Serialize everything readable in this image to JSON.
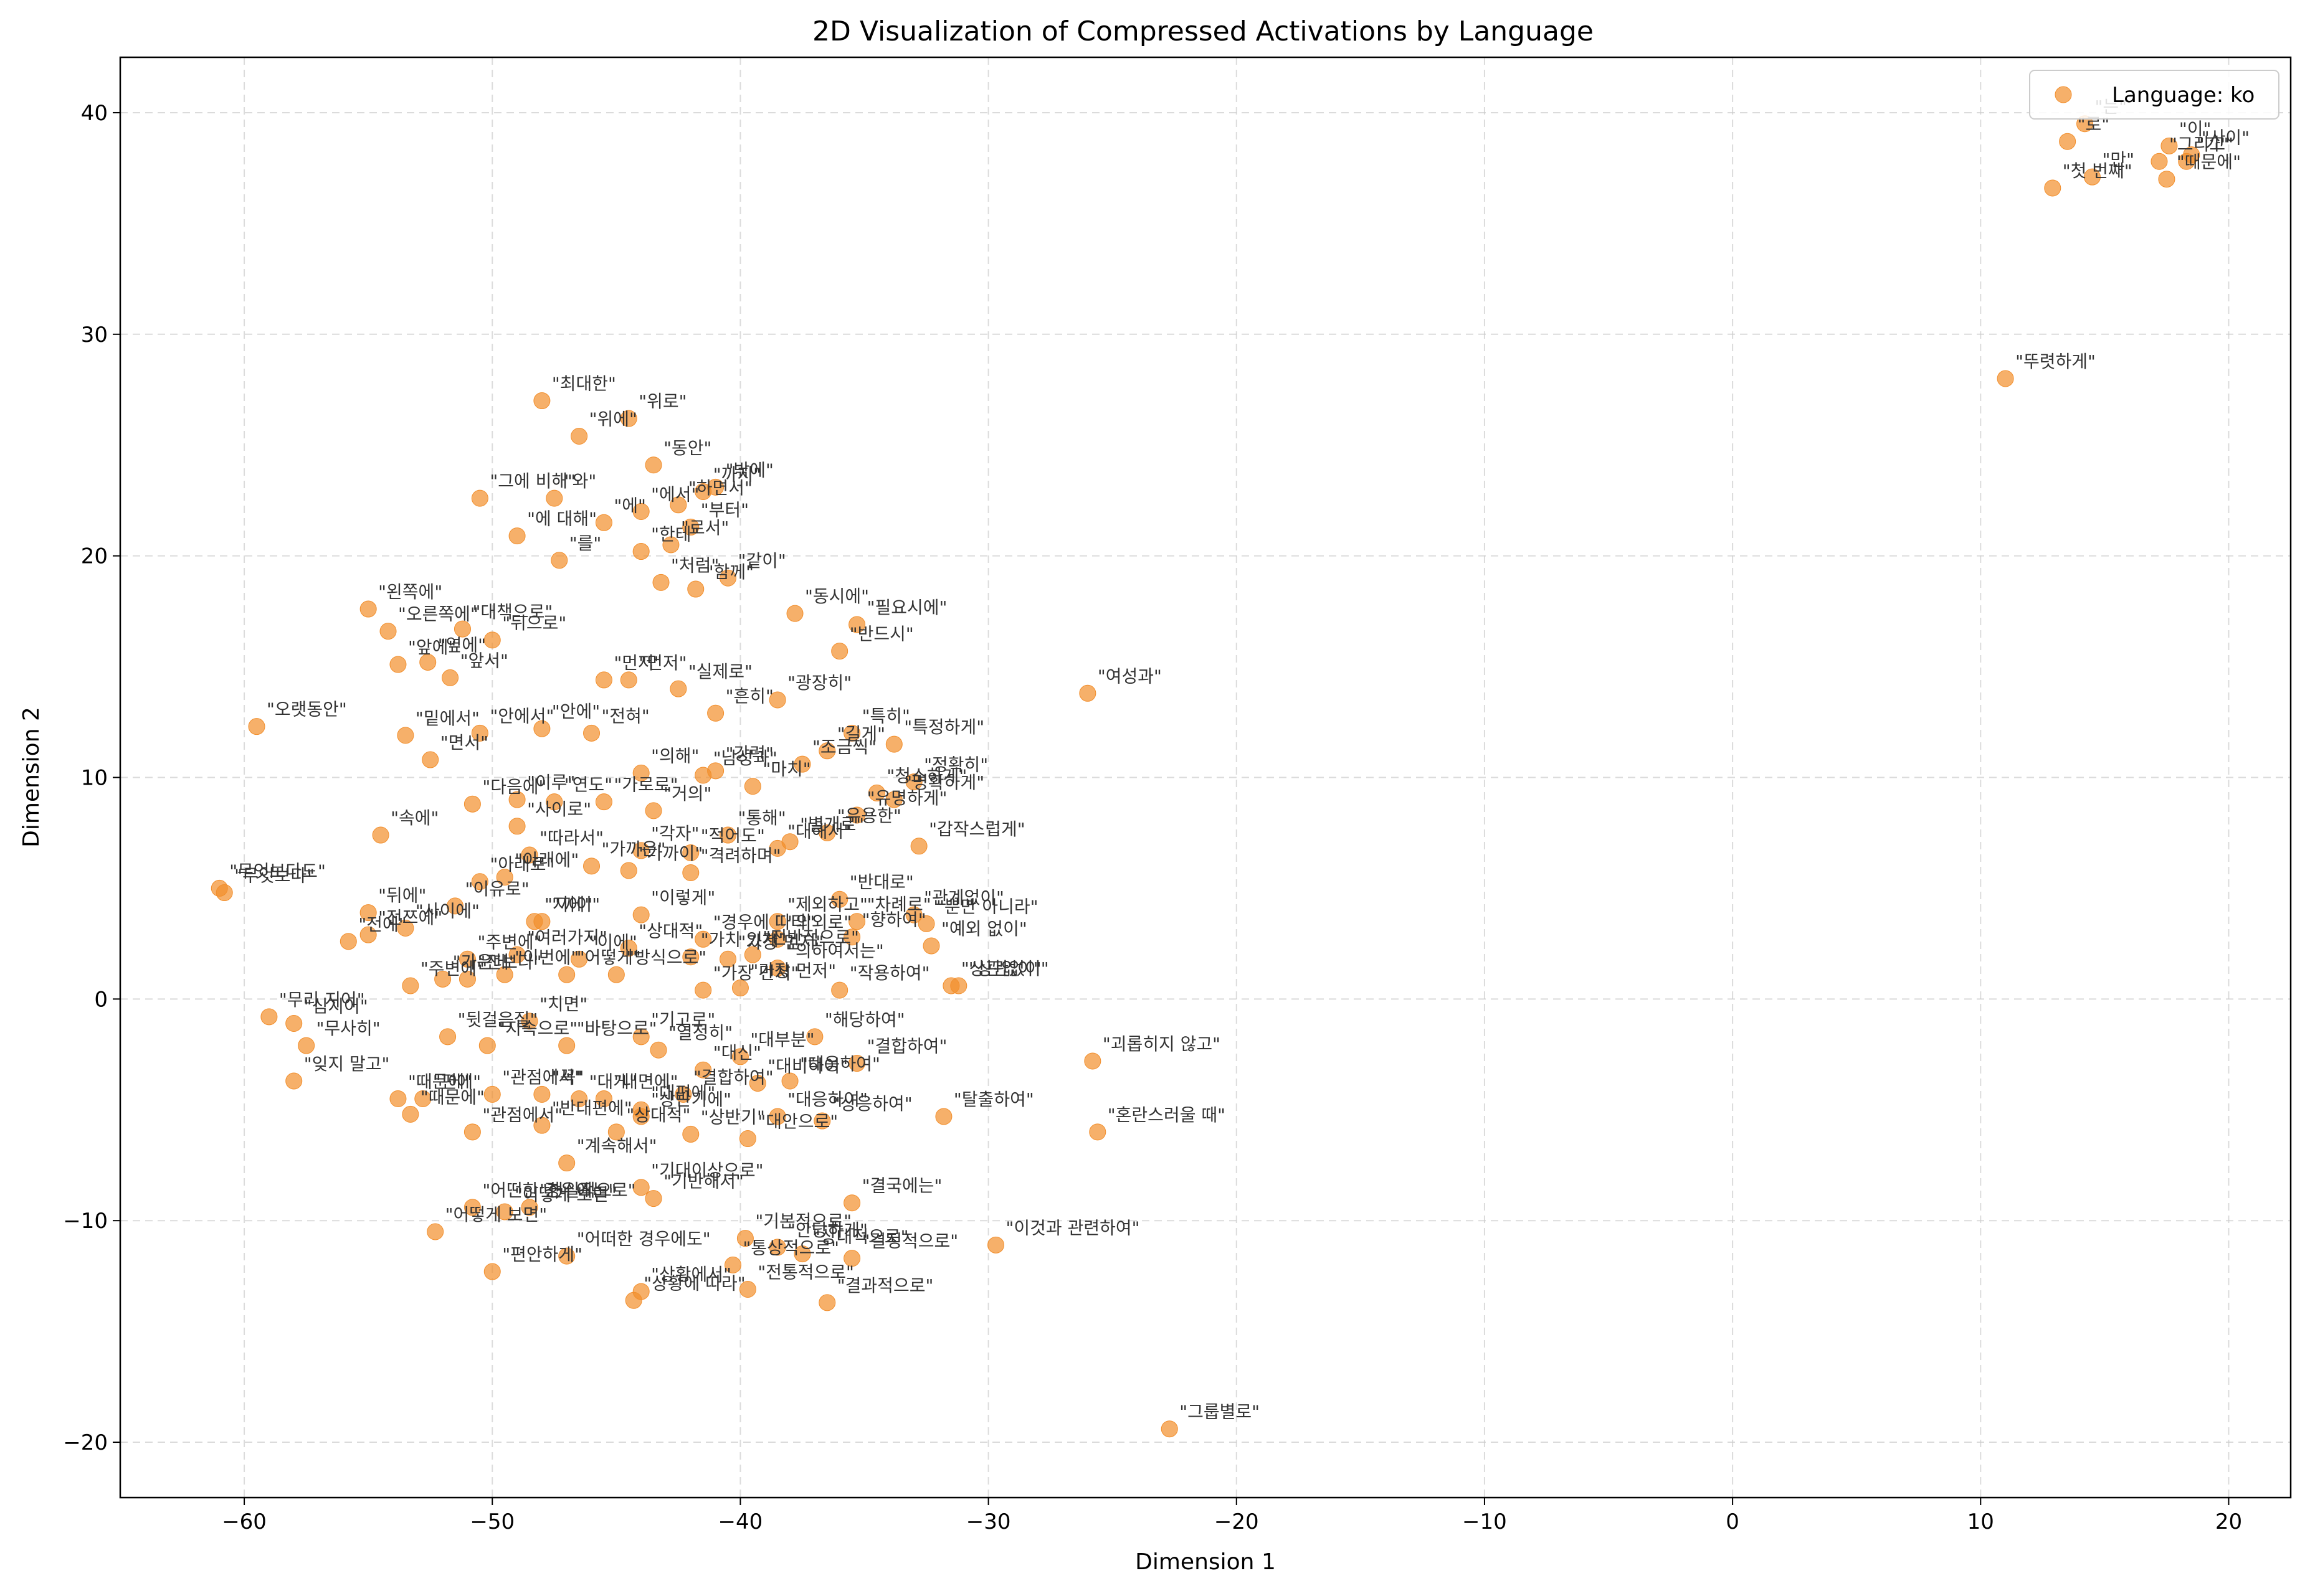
{
  "chart_data": {
    "type": "scatter",
    "title": "2D Visualization of Compressed Activations by Language",
    "xlabel": "Dimension 1",
    "ylabel": "Dimension 2",
    "xlim": [
      -65,
      22.5
    ],
    "ylim": [
      -22.5,
      42.5
    ],
    "xticks": [
      -60,
      -50,
      -40,
      -30,
      -20,
      -10,
      0,
      10,
      20
    ],
    "yticks": [
      -20,
      -10,
      0,
      10,
      20,
      30,
      40
    ],
    "xtick_labels": [
      "−60",
      "−50",
      "−40",
      "−30",
      "−20",
      "−10",
      "0",
      "10",
      "20"
    ],
    "ytick_labels": [
      "−20",
      "−10",
      "0",
      "10",
      "20",
      "30",
      "40"
    ],
    "grid": true,
    "legend_position": "top-right",
    "point_color": "#f28e2b",
    "series": [
      {
        "name": "Language: ko",
        "points": [
          {
            "x": -48,
            "y": 27,
            "label": "\"최대한\""
          },
          {
            "x": -46.5,
            "y": 25.4,
            "label": "\"위에\""
          },
          {
            "x": -44.5,
            "y": 26.2,
            "label": "\"위로\""
          },
          {
            "x": -43.5,
            "y": 24.1,
            "label": "\"동안\""
          },
          {
            "x": -50.5,
            "y": 22.6,
            "label": "\"그에 비해\""
          },
          {
            "x": -47.5,
            "y": 22.6,
            "label": "\"와\""
          },
          {
            "x": -41,
            "y": 23.1,
            "label": "\"밖에\""
          },
          {
            "x": -45.5,
            "y": 21.5,
            "label": "\"에\""
          },
          {
            "x": -44,
            "y": 22,
            "label": "\"에서\""
          },
          {
            "x": -42.5,
            "y": 22.3,
            "label": "\"하면서\""
          },
          {
            "x": -41.5,
            "y": 22.9,
            "label": "\"까지\""
          },
          {
            "x": -42,
            "y": 21.3,
            "label": "\"부터\""
          },
          {
            "x": -49,
            "y": 20.9,
            "label": "\"에 대해\""
          },
          {
            "x": -42.8,
            "y": 20.5,
            "label": "\"로서\""
          },
          {
            "x": -47.3,
            "y": 19.8,
            "label": "\"를\""
          },
          {
            "x": -44,
            "y": 20.2,
            "label": "\"한테\""
          },
          {
            "x": -43.2,
            "y": 18.8,
            "label": "\"처럼\""
          },
          {
            "x": -41.8,
            "y": 18.5,
            "label": "\"함께\""
          },
          {
            "x": -40.5,
            "y": 19,
            "label": "\"같이\""
          },
          {
            "x": -37.8,
            "y": 17.4,
            "label": "\"동시에\""
          },
          {
            "x": -35.3,
            "y": 16.9,
            "label": "\"필요시에\""
          },
          {
            "x": -36,
            "y": 15.7,
            "label": "\"반드시\""
          },
          {
            "x": -55,
            "y": 17.6,
            "label": "\"왼쪽에\""
          },
          {
            "x": -54.2,
            "y": 16.6,
            "label": "\"오른쪽에\""
          },
          {
            "x": -51.2,
            "y": 16.7,
            "label": "\"대책으로\""
          },
          {
            "x": -50,
            "y": 16.2,
            "label": "\"뒤으로\""
          },
          {
            "x": -52.6,
            "y": 15.2,
            "label": "\"옆에\""
          },
          {
            "x": -53.8,
            "y": 15.1,
            "label": "\"앞에\""
          },
          {
            "x": -51.7,
            "y": 14.5,
            "label": "\"앞서\""
          },
          {
            "x": -45.5,
            "y": 14.4,
            "label": "\"먼저\""
          },
          {
            "x": -44.5,
            "y": 14.4,
            "label": "\"먼저\""
          },
          {
            "x": -42.5,
            "y": 14,
            "label": "\"실제로\""
          },
          {
            "x": -38.5,
            "y": 13.5,
            "label": "\"광장히\""
          },
          {
            "x": -41,
            "y": 12.9,
            "label": "\"흔히\""
          },
          {
            "x": -59.5,
            "y": 12.3,
            "label": "\"오랫동안\""
          },
          {
            "x": -53.5,
            "y": 11.9,
            "label": "\"밑에서\""
          },
          {
            "x": -50.5,
            "y": 12,
            "label": "\"안에서\""
          },
          {
            "x": -48,
            "y": 12.2,
            "label": "\"안에\""
          },
          {
            "x": -46,
            "y": 12,
            "label": "\"전혀\""
          },
          {
            "x": -35.5,
            "y": 12,
            "label": "\"특히\""
          },
          {
            "x": -33.8,
            "y": 11.5,
            "label": "\"특정하게\""
          },
          {
            "x": -52.5,
            "y": 10.8,
            "label": "\"면서\""
          },
          {
            "x": -41.5,
            "y": 10.1,
            "label": "\"남성과\""
          },
          {
            "x": -41,
            "y": 10.3,
            "label": "\"강력\""
          },
          {
            "x": -44,
            "y": 10.2,
            "label": "\"의해\""
          },
          {
            "x": -39.5,
            "y": 9.6,
            "label": "\"마치\""
          },
          {
            "x": -37.5,
            "y": 10.6,
            "label": "\"조금씩\""
          },
          {
            "x": -36.5,
            "y": 11.2,
            "label": "\"길게\""
          },
          {
            "x": -34.5,
            "y": 9.3,
            "label": "\"청소하게\""
          },
          {
            "x": -33,
            "y": 9.8,
            "label": "\"정확히\""
          },
          {
            "x": -33.8,
            "y": 9,
            "label": "\"명확하게\""
          },
          {
            "x": -50.8,
            "y": 8.8,
            "label": "\"다음에\""
          },
          {
            "x": -49,
            "y": 9,
            "label": "\"이루\""
          },
          {
            "x": -47.5,
            "y": 8.9,
            "label": "\"연도\""
          },
          {
            "x": -45.5,
            "y": 8.9,
            "label": "\"가로로\""
          },
          {
            "x": -43.5,
            "y": 8.5,
            "label": "\"거의\""
          },
          {
            "x": -54.5,
            "y": 7.4,
            "label": "\"속에\""
          },
          {
            "x": -49,
            "y": 7.8,
            "label": "\"사이로\""
          },
          {
            "x": -40.5,
            "y": 7.4,
            "label": "\"통해\""
          },
          {
            "x": -38,
            "y": 7.1,
            "label": "\"별개로\""
          },
          {
            "x": -36.5,
            "y": 7.5,
            "label": "\"유용한\""
          },
          {
            "x": -35.3,
            "y": 8.3,
            "label": "\"유명하게\""
          },
          {
            "x": -32.8,
            "y": 6.9,
            "label": "\"갑작스럽게\""
          },
          {
            "x": -48.5,
            "y": 6.5,
            "label": "\"따라서\""
          },
          {
            "x": -44,
            "y": 6.7,
            "label": "\"각자\""
          },
          {
            "x": -42,
            "y": 6.6,
            "label": "\"적어도\""
          },
          {
            "x": -38.5,
            "y": 6.8,
            "label": "\"대해서\""
          },
          {
            "x": -61,
            "y": 5,
            "label": "\"무엇보다도\""
          },
          {
            "x": -60.8,
            "y": 4.8,
            "label": "\"무엇보다\""
          },
          {
            "x": -50.5,
            "y": 5.3,
            "label": "\"아래로\""
          },
          {
            "x": -49.5,
            "y": 5.5,
            "label": "\"아래에\""
          },
          {
            "x": -46,
            "y": 6,
            "label": "\"가까운\""
          },
          {
            "x": -44.5,
            "y": 5.8,
            "label": "\"가까이\""
          },
          {
            "x": -42,
            "y": 5.7,
            "label": "\"격려하며\""
          },
          {
            "x": -36,
            "y": 4.5,
            "label": "\"반대로\""
          },
          {
            "x": -55,
            "y": 3.9,
            "label": "\"뒤에\""
          },
          {
            "x": -51.5,
            "y": 4.2,
            "label": "\"이유로\""
          },
          {
            "x": -48.3,
            "y": 3.5,
            "label": "\"지에\""
          },
          {
            "x": -48,
            "y": 3.5,
            "label": "\"까이\""
          },
          {
            "x": -44,
            "y": 3.8,
            "label": "\"이렇게\""
          },
          {
            "x": -38.5,
            "y": 3.5,
            "label": "\"제외하고\""
          },
          {
            "x": -35.3,
            "y": 3.5,
            "label": "\"차례로\""
          },
          {
            "x": -33,
            "y": 3.8,
            "label": "\"관계없이\""
          },
          {
            "x": -32.5,
            "y": 3.4,
            "label": "\"뿐만 아니라\""
          },
          {
            "x": -55.8,
            "y": 2.6,
            "label": "\"전에\""
          },
          {
            "x": -55,
            "y": 2.9,
            "label": "\"전쯔에\""
          },
          {
            "x": -53.5,
            "y": 3.2,
            "label": "\"사이에\""
          },
          {
            "x": -41.5,
            "y": 2.7,
            "label": "\"경우에 따라\""
          },
          {
            "x": -38.5,
            "y": 2.7,
            "label": "\"의외로\""
          },
          {
            "x": -35.5,
            "y": 2.8,
            "label": "\"향하여\""
          },
          {
            "x": -32.3,
            "y": 2.4,
            "label": "\"예외 없이\""
          },
          {
            "x": -51,
            "y": 1.8,
            "label": "\"주변에\""
          },
          {
            "x": -49,
            "y": 2,
            "label": "\"여러가지\""
          },
          {
            "x": -46.5,
            "y": 1.8,
            "label": "\"이에\""
          },
          {
            "x": -44.5,
            "y": 2.3,
            "label": "\"상대적\""
          },
          {
            "x": -42,
            "y": 1.9,
            "label": "\"가치 있게\""
          },
          {
            "x": -40.5,
            "y": 1.8,
            "label": "\"가장 먼저\""
          },
          {
            "x": -39.5,
            "y": 2,
            "label": "\"전반적으로\""
          },
          {
            "x": -38.5,
            "y": 1.4,
            "label": "\"의하여서는\""
          },
          {
            "x": -31.5,
            "y": 0.6,
            "label": "\"상관없이\""
          },
          {
            "x": -31.2,
            "y": 0.6,
            "label": "\"상관없이\""
          },
          {
            "x": -53.3,
            "y": 0.6,
            "label": "\"주변에\""
          },
          {
            "x": -52,
            "y": 0.9,
            "label": "\"가운데\""
          },
          {
            "x": -51,
            "y": 0.9,
            "label": "\"전보다\""
          },
          {
            "x": -49.5,
            "y": 1.1,
            "label": "\"이번에\""
          },
          {
            "x": -47,
            "y": 1.1,
            "label": "\"어떻게\""
          },
          {
            "x": -45,
            "y": 1.1,
            "label": "\"방식으로\""
          },
          {
            "x": -41.5,
            "y": 0.4,
            "label": "\"가장 먼저\""
          },
          {
            "x": -40,
            "y": 0.5,
            "label": "\"가장 먼저\""
          },
          {
            "x": -36,
            "y": 0.4,
            "label": "\"작용하여\""
          },
          {
            "x": -59,
            "y": -0.8,
            "label": "\"무리 지어\""
          },
          {
            "x": -58,
            "y": -1.1,
            "label": "\"심지어\""
          },
          {
            "x": -57.5,
            "y": -2.1,
            "label": "\"무사히\""
          },
          {
            "x": -51.8,
            "y": -1.7,
            "label": "\"뒷걸음질\""
          },
          {
            "x": -50.2,
            "y": -2.1,
            "label": "\"지속으로\""
          },
          {
            "x": -48.5,
            "y": -1,
            "label": "\"치면\""
          },
          {
            "x": -47,
            "y": -2.1,
            "label": "\"바탕으로\""
          },
          {
            "x": -44,
            "y": -1.7,
            "label": "\"기고로\""
          },
          {
            "x": -43.3,
            "y": -2.3,
            "label": "\"열정히\""
          },
          {
            "x": -41.5,
            "y": -3.2,
            "label": "\"대신\""
          },
          {
            "x": -37,
            "y": -1.7,
            "label": "\"해당하여\""
          },
          {
            "x": -58,
            "y": -3.7,
            "label": "\"잊지 말고\""
          },
          {
            "x": -53.8,
            "y": -4.5,
            "label": "\"때문에\""
          },
          {
            "x": -52.8,
            "y": -4.5,
            "label": "\"편에\""
          },
          {
            "x": -53.3,
            "y": -5.2,
            "label": "\"때문에\""
          },
          {
            "x": -50,
            "y": -4.3,
            "label": "\"관점에서\""
          },
          {
            "x": -48,
            "y": -4.3,
            "label": "\"꼭\""
          },
          {
            "x": -46.5,
            "y": -4.5,
            "label": "\"대게\""
          },
          {
            "x": -45.5,
            "y": -4.5,
            "label": "\"내면에\""
          },
          {
            "x": -44,
            "y": -5,
            "label": "\"대편에\""
          },
          {
            "x": -42.3,
            "y": -4.3,
            "label": "\"결합하여\""
          },
          {
            "x": -40,
            "y": -2.6,
            "label": "\"대부분\""
          },
          {
            "x": -39.3,
            "y": -3.8,
            "label": "\"대비하여\""
          },
          {
            "x": -38,
            "y": -3.7,
            "label": "\"대응하여\""
          },
          {
            "x": -35.3,
            "y": -2.9,
            "label": "\"결합하여\""
          },
          {
            "x": -25.8,
            "y": -2.8,
            "label": "\"괴롭히지 않고\""
          },
          {
            "x": -50.8,
            "y": -6,
            "label": "\"관점에서\""
          },
          {
            "x": -48,
            "y": -5.7,
            "label": "\"반대편에\""
          },
          {
            "x": -45,
            "y": -6,
            "label": "\"상대적\""
          },
          {
            "x": -44,
            "y": -5.3,
            "label": "\"상반기에\""
          },
          {
            "x": -42,
            "y": -6.1,
            "label": "\"상반기\""
          },
          {
            "x": -39.7,
            "y": -6.3,
            "label": "\"대안으로\""
          },
          {
            "x": -38.5,
            "y": -5.3,
            "label": "\"대응하여\""
          },
          {
            "x": -36.7,
            "y": -5.5,
            "label": "\"상응하여\""
          },
          {
            "x": -31.8,
            "y": -5.3,
            "label": "\"탈출하여\""
          },
          {
            "x": -25.6,
            "y": -6,
            "label": "\"혼란스러울 때\""
          },
          {
            "x": -47,
            "y": -7.4,
            "label": "\"계속해서\""
          },
          {
            "x": -44,
            "y": -8.5,
            "label": "\"기대이상으로\""
          },
          {
            "x": -43.5,
            "y": -9,
            "label": "\"기반해서\""
          },
          {
            "x": -35.5,
            "y": -9.2,
            "label": "\"결국에는\""
          },
          {
            "x": -50.8,
            "y": -9.4,
            "label": "\"어떤한 경우에는\""
          },
          {
            "x": -49.5,
            "y": -9.6,
            "label": "\"어떻게 보면\""
          },
          {
            "x": -48.5,
            "y": -9.4,
            "label": "\"현실적으로\""
          },
          {
            "x": -52.3,
            "y": -10.5,
            "label": "\"어떻게 보면\""
          },
          {
            "x": -39.8,
            "y": -10.8,
            "label": "\"기본적으로\""
          },
          {
            "x": -38.5,
            "y": -11.2,
            "label": "\"안당하게\""
          },
          {
            "x": -37.5,
            "y": -11.5,
            "label": "\"상대적으로\""
          },
          {
            "x": -29.7,
            "y": -11.1,
            "label": "\"이것과 관련하여\""
          },
          {
            "x": -50,
            "y": -12.3,
            "label": "\"편안하게\""
          },
          {
            "x": -47,
            "y": -11.6,
            "label": "\"어떠한 경우에도\""
          },
          {
            "x": -40.3,
            "y": -12,
            "label": "\"통상적으로\""
          },
          {
            "x": -35.5,
            "y": -11.7,
            "label": "\"결정적으로\""
          },
          {
            "x": -44.3,
            "y": -13.6,
            "label": "\"상황에 따라\""
          },
          {
            "x": -44,
            "y": -13.2,
            "label": "\"상황에서\""
          },
          {
            "x": -39.7,
            "y": -13.1,
            "label": "\"전통적으로\""
          },
          {
            "x": -36.5,
            "y": -13.7,
            "label": "\"결과적으로\""
          },
          {
            "x": -22.7,
            "y": -19.4,
            "label": "\"그룹별로\""
          },
          {
            "x": -26,
            "y": 13.8,
            "label": "\"여성과\""
          },
          {
            "x": 11,
            "y": 28,
            "label": "\"뚜렷하게\""
          },
          {
            "x": 14.2,
            "y": 39.5,
            "label": "\"는\""
          },
          {
            "x": 13.5,
            "y": 38.7,
            "label": "\"로\""
          },
          {
            "x": 17.6,
            "y": 38.5,
            "label": "\"이\""
          },
          {
            "x": 18.3,
            "y": 37.8,
            "label": "\"가\""
          },
          {
            "x": 18.5,
            "y": 38.1,
            "label": "\"사이\""
          },
          {
            "x": 17.2,
            "y": 37.8,
            "label": "\"그리고\""
          },
          {
            "x": 17.5,
            "y": 37,
            "label": "\"때문에\""
          },
          {
            "x": 14.5,
            "y": 37.1,
            "label": "\"만\""
          },
          {
            "x": 12.9,
            "y": 36.6,
            "label": "\"첫 번째\""
          }
        ]
      }
    ]
  }
}
